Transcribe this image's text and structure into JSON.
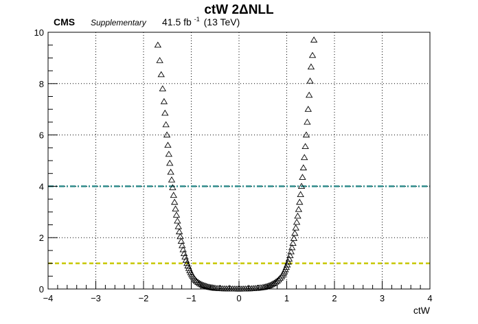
{
  "header": {
    "title": "ctW 2ΔNLL",
    "experiment": "CMS",
    "tag": "Supplementary",
    "lumi_value": "41.5 fb",
    "lumi_exp": "-1",
    "energy": "(13 TeV)"
  },
  "chart_data": {
    "type": "scatter",
    "title": "ctW 2ΔNLL",
    "xlabel": "ctW",
    "ylabel": "",
    "xlim": [
      -4,
      4
    ],
    "ylim": [
      0,
      10
    ],
    "x_ticks": [
      -4,
      -3,
      -2,
      -1,
      0,
      1,
      2,
      3,
      4
    ],
    "y_ticks": [
      0,
      2,
      4,
      6,
      8,
      10
    ],
    "grid": true,
    "marker": "open-triangle",
    "reference_lines": [
      {
        "y": 4,
        "color": "#2e8b8b",
        "style": "dash-dot"
      },
      {
        "y": 1,
        "color": "#c8c800",
        "style": "dashed"
      }
    ],
    "series": [
      {
        "x": [
          -1.7,
          -1.66,
          -1.63,
          -1.6,
          -1.57,
          -1.55,
          -1.53,
          -1.51,
          -1.49,
          -1.47,
          -1.45,
          -1.43,
          -1.41,
          -1.39,
          -1.37,
          -1.35,
          -1.33,
          -1.31,
          -1.29,
          -1.27,
          -1.25,
          -1.23,
          -1.21,
          -1.19,
          -1.17,
          -1.15,
          -1.13,
          -1.11,
          -1.09,
          -1.07,
          -1.05,
          -1.03,
          -1.01,
          -0.99,
          -0.97,
          -0.95,
          -0.93,
          -0.91,
          -0.89,
          -0.86,
          -0.83,
          -0.8,
          -0.77,
          -0.74,
          -0.71,
          -0.68,
          -0.65,
          -0.62,
          -0.59,
          -0.56,
          -0.53,
          -0.5,
          -0.46,
          -0.42,
          -0.38,
          -0.34,
          -0.3,
          -0.26,
          -0.22,
          -0.18,
          -0.14,
          -0.1,
          -0.06,
          -0.02,
          0.02,
          0.06,
          0.1,
          0.14,
          0.18,
          0.22,
          0.26,
          0.3,
          0.34,
          0.38,
          0.42,
          0.46,
          0.5,
          0.53,
          0.56,
          0.59,
          0.62,
          0.65,
          0.68,
          0.71,
          0.74,
          0.77,
          0.8,
          0.83,
          0.86,
          0.89,
          0.91,
          0.93,
          0.95,
          0.97,
          0.99,
          1.01,
          1.03,
          1.05,
          1.07,
          1.09,
          1.11,
          1.13,
          1.15,
          1.17,
          1.19,
          1.21,
          1.23,
          1.25,
          1.27,
          1.29,
          1.31,
          1.33,
          1.35,
          1.37,
          1.39,
          1.41,
          1.43,
          1.45,
          1.47,
          1.49,
          1.51,
          1.54,
          1.57
        ],
        "y": [
          9.5,
          8.9,
          8.35,
          7.8,
          7.3,
          6.85,
          6.4,
          6.0,
          5.6,
          5.25,
          4.9,
          4.55,
          4.25,
          3.95,
          3.65,
          3.38,
          3.12,
          2.88,
          2.65,
          2.43,
          2.23,
          2.04,
          1.86,
          1.69,
          1.53,
          1.38,
          1.25,
          1.12,
          1.0,
          0.9,
          0.8,
          0.71,
          0.63,
          0.56,
          0.5,
          0.44,
          0.39,
          0.34,
          0.3,
          0.26,
          0.22,
          0.19,
          0.16,
          0.14,
          0.12,
          0.1,
          0.08,
          0.07,
          0.06,
          0.05,
          0.04,
          0.03,
          0.025,
          0.02,
          0.015,
          0.012,
          0.01,
          0.008,
          0.006,
          0.005,
          0.004,
          0.003,
          0.002,
          0.001,
          0.001,
          0.002,
          0.004,
          0.006,
          0.008,
          0.011,
          0.015,
          0.02,
          0.025,
          0.03,
          0.04,
          0.05,
          0.06,
          0.07,
          0.085,
          0.1,
          0.12,
          0.14,
          0.17,
          0.2,
          0.23,
          0.27,
          0.31,
          0.36,
          0.42,
          0.48,
          0.54,
          0.6,
          0.67,
          0.75,
          0.84,
          0.94,
          1.05,
          1.17,
          1.3,
          1.45,
          1.61,
          1.78,
          1.97,
          2.17,
          2.38,
          2.6,
          2.84,
          3.1,
          3.38,
          3.68,
          4.0,
          4.35,
          4.72,
          5.12,
          5.55,
          6.0,
          6.5,
          7.0,
          7.55,
          8.1,
          8.65,
          9.1,
          9.7
        ]
      }
    ]
  }
}
